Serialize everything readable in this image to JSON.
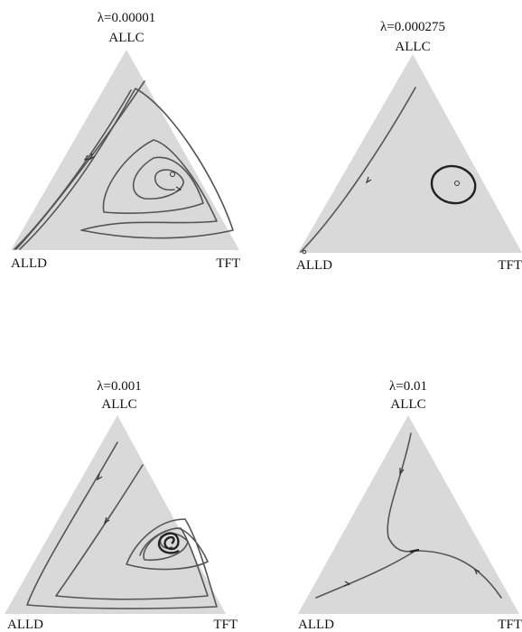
{
  "panels": [
    {
      "lambda": "λ=0.00001",
      "top": "ALLC",
      "left": "ALLD",
      "right": "TFT"
    },
    {
      "lambda": "λ=0.000275",
      "top": "ALLC",
      "left": "ALLD",
      "right": "TFT"
    },
    {
      "lambda": "λ=0.001",
      "top": "ALLC",
      "left": "ALLD",
      "right": "TFT"
    },
    {
      "lambda": "λ=0.01",
      "top": "ALLC",
      "left": "ALLD",
      "right": "TFT"
    }
  ]
}
